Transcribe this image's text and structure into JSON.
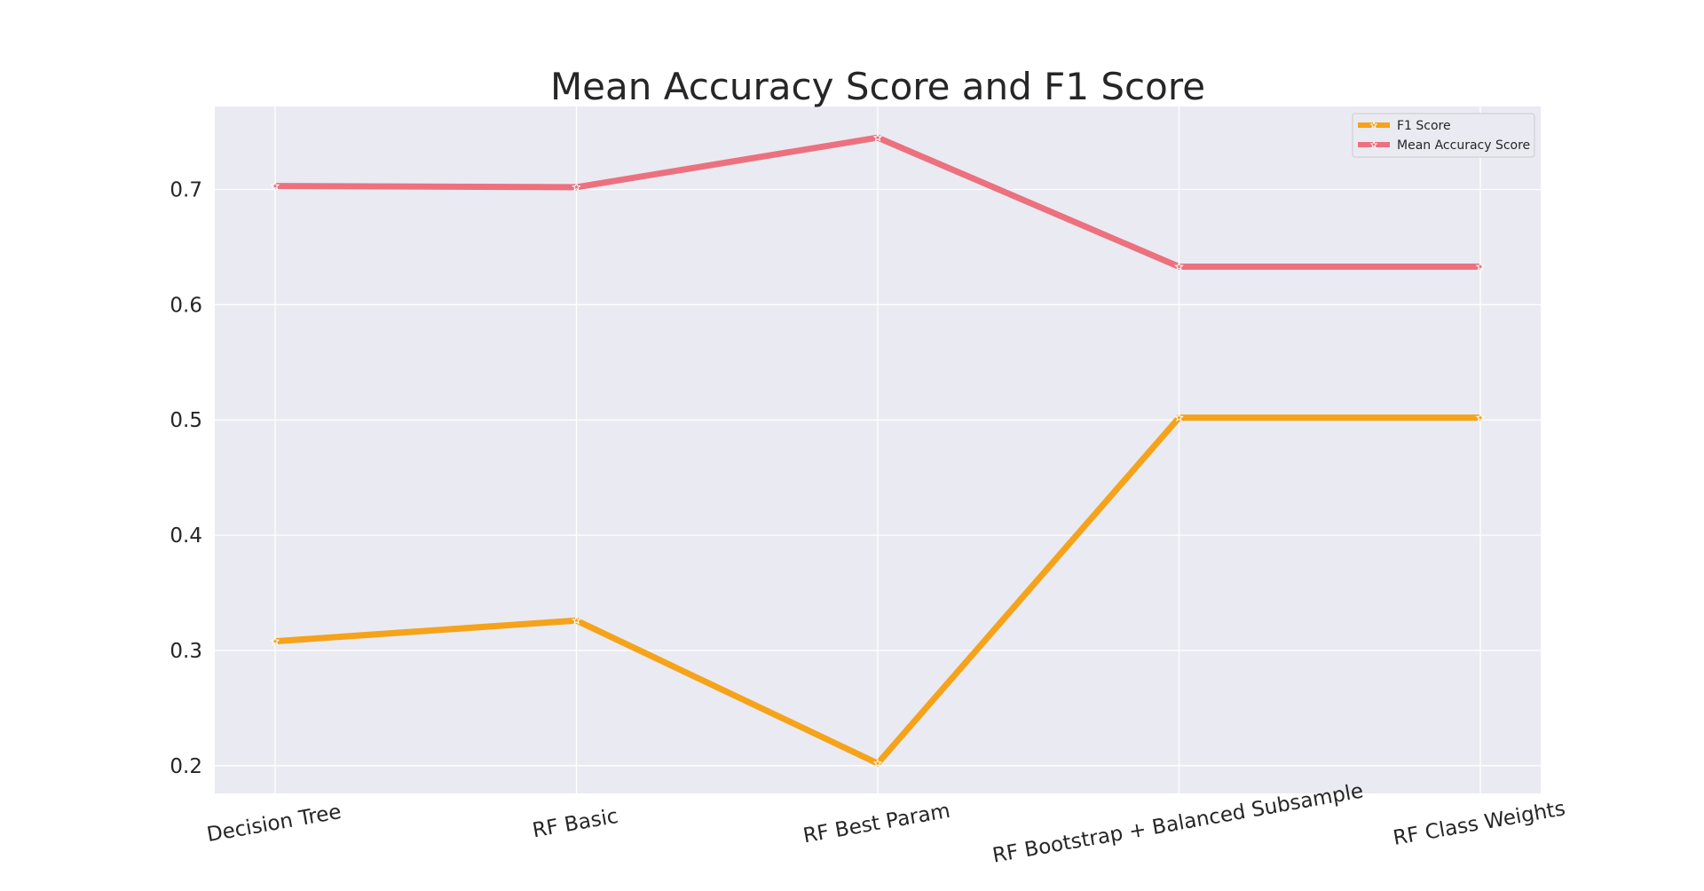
{
  "chart_data": {
    "type": "line",
    "title": "Mean Accuracy Score and F1 Score",
    "xlabel": "",
    "ylabel": "",
    "categories": [
      "Decision Tree",
      "RF Basic",
      "RF Best Param",
      "RF Bootstrap + Balanced Subsample",
      "RF Class Weights"
    ],
    "series": [
      {
        "name": "F1 Score",
        "values": [
          0.308,
          0.326,
          0.202,
          0.502,
          0.502
        ],
        "color": "#f5a31a"
      },
      {
        "name": "Mean Accuracy Score",
        "values": [
          0.703,
          0.702,
          0.745,
          0.633,
          0.633
        ],
        "color": "#ec717f"
      }
    ],
    "yticks": [
      "0.2",
      "0.3",
      "0.4",
      "0.5",
      "0.6",
      "0.7"
    ],
    "ylim": [
      0.176,
      0.772
    ],
    "grid": true,
    "legend_position": "top-right",
    "marker": "star",
    "plot_background": "#eaeaf2",
    "grid_color": "#ffffff"
  }
}
